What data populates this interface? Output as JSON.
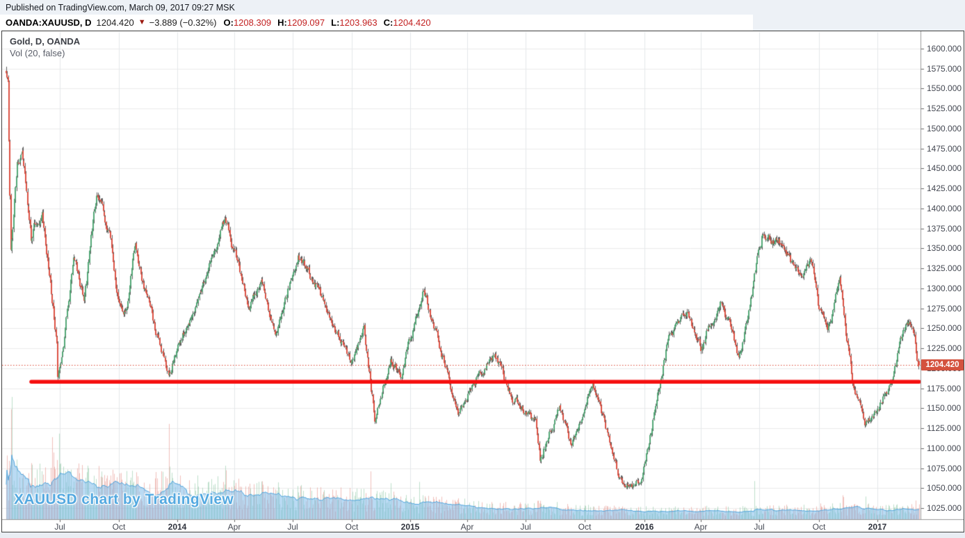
{
  "header": {
    "published_line": "Published on TradingView.com, March 09, 2017 09:27 MSK",
    "symbol_line": {
      "symbol": "OANDA:XAUUSD, D",
      "last": "1204.420",
      "arrow_glyph": "▼",
      "change": "−3.889 (−0.32%)",
      "o_label": "O:",
      "o_value": "1208.309",
      "h_label": "H:",
      "h_value": "1209.097",
      "l_label": "L:",
      "l_value": "1203.963",
      "c_label": "C:",
      "c_value": "1204.420"
    }
  },
  "chart": {
    "legend": {
      "title": "Gold, D, OANDA",
      "indicator": "Vol (20, false)"
    },
    "watermark": "XAUUSD chart by TradingView",
    "price_label": "1204.420",
    "colors": {
      "page_band": "#edf1f6",
      "chart_bg": "#ffffff",
      "frame": "#3e3e3e",
      "axis_line": "#999999",
      "tick_mark": "#666666",
      "grid_h": "#ececec",
      "grid_v": "#e4e7ea",
      "up_body": "#52a876",
      "down_body": "#dc5143",
      "wick": "#5f5f5f",
      "vol_up": "rgba(110,185,140,0.45)",
      "vol_down": "rgba(225,115,105,0.45)",
      "vol_ma_fill": "rgba(130,190,235,0.55)",
      "vol_ma_line": "#4da3dc",
      "support_line": "#f50f0f",
      "last_price_line": "#dc4936",
      "badge_bg": "#d4523e",
      "badge_text": "#ffffff",
      "watermark": "#54a9e0"
    }
  },
  "chart_data": {
    "type": "candlestick+volume",
    "symbol": "XAUUSD",
    "exchange": "OANDA",
    "timeframe": "D",
    "title": "Gold, D, OANDA",
    "volume_indicator": "Vol (20, false)",
    "render_seed": 7,
    "y_axis": {
      "decimals": 3,
      "ticks": [
        1600,
        1575,
        1550,
        1525,
        1500,
        1475,
        1450,
        1425,
        1400,
        1375,
        1350,
        1325,
        1300,
        1275,
        1250,
        1225,
        1200,
        1175,
        1150,
        1125,
        1100,
        1075,
        1050,
        1025
      ]
    },
    "x_axis": {
      "start_date": "2013-04-08",
      "end_date": "2017-03-09",
      "ticks": [
        {
          "label": "Jul",
          "date": "2013-07-01",
          "bold": false
        },
        {
          "label": "Oct",
          "date": "2013-10-01",
          "bold": false
        },
        {
          "label": "2014",
          "date": "2014-01-01",
          "bold": true
        },
        {
          "label": "Apr",
          "date": "2014-04-01",
          "bold": false
        },
        {
          "label": "Jul",
          "date": "2014-07-01",
          "bold": false
        },
        {
          "label": "Oct",
          "date": "2014-10-01",
          "bold": false
        },
        {
          "label": "2015",
          "date": "2015-01-01",
          "bold": true
        },
        {
          "label": "Apr",
          "date": "2015-04-01",
          "bold": false
        },
        {
          "label": "Jul",
          "date": "2015-07-01",
          "bold": false
        },
        {
          "label": "Oct",
          "date": "2015-10-01",
          "bold": false
        },
        {
          "label": "2016",
          "date": "2016-01-04",
          "bold": true
        },
        {
          "label": "Apr",
          "date": "2016-04-01",
          "bold": false
        },
        {
          "label": "Jul",
          "date": "2016-07-01",
          "bold": false
        },
        {
          "label": "Oct",
          "date": "2016-10-03",
          "bold": false
        },
        {
          "label": "2017",
          "date": "2017-01-02",
          "bold": true
        }
      ]
    },
    "last_price": 1204.42,
    "last_ohlc": {
      "open": 1208.309,
      "high": 1209.097,
      "low": 1203.963,
      "close": 1204.42
    },
    "support_line": {
      "price": 1183,
      "start_date": "2013-05-17",
      "ends_at": "plot-right-edge"
    },
    "anchors": [
      [
        "2013-04-08",
        1575
      ],
      [
        "2013-04-11",
        1561
      ],
      [
        "2013-04-12",
        1483
      ],
      [
        "2013-04-15",
        1352
      ],
      [
        "2013-04-16",
        1368
      ],
      [
        "2013-04-25",
        1458
      ],
      [
        "2013-05-03",
        1470
      ],
      [
        "2013-05-17",
        1360
      ],
      [
        "2013-05-22",
        1380
      ],
      [
        "2013-06-04",
        1399
      ],
      [
        "2013-06-20",
        1286
      ],
      [
        "2013-06-26",
        1228
      ],
      [
        "2013-06-28",
        1187
      ],
      [
        "2013-07-05",
        1212
      ],
      [
        "2013-07-23",
        1335
      ],
      [
        "2013-08-07",
        1285
      ],
      [
        "2013-08-28",
        1418
      ],
      [
        "2013-09-18",
        1364
      ],
      [
        "2013-10-01",
        1287
      ],
      [
        "2013-10-15",
        1273
      ],
      [
        "2013-10-28",
        1352
      ],
      [
        "2013-11-25",
        1250
      ],
      [
        "2013-12-19",
        1188
      ],
      [
        "2014-01-02",
        1225
      ],
      [
        "2014-03-17",
        1385
      ],
      [
        "2014-04-24",
        1284
      ],
      [
        "2014-05-14",
        1306
      ],
      [
        "2014-06-03",
        1244
      ],
      [
        "2014-07-10",
        1339
      ],
      [
        "2014-08-06",
        1308
      ],
      [
        "2014-09-30",
        1208
      ],
      [
        "2014-10-21",
        1248
      ],
      [
        "2014-11-07",
        1142
      ],
      [
        "2014-12-01",
        1212
      ],
      [
        "2014-12-17",
        1188
      ],
      [
        "2015-01-22",
        1301
      ],
      [
        "2015-03-17",
        1148
      ],
      [
        "2015-05-14",
        1221
      ],
      [
        "2015-06-05",
        1172
      ],
      [
        "2015-07-17",
        1132
      ],
      [
        "2015-07-24",
        1086
      ],
      [
        "2015-08-24",
        1154
      ],
      [
        "2015-09-11",
        1103
      ],
      [
        "2015-10-15",
        1184
      ],
      [
        "2015-11-27",
        1057
      ],
      [
        "2015-12-03",
        1049
      ],
      [
        "2015-12-17",
        1051
      ],
      [
        "2015-12-31",
        1060
      ],
      [
        "2016-02-11",
        1242
      ],
      [
        "2016-03-11",
        1272
      ],
      [
        "2016-04-01",
        1222
      ],
      [
        "2016-05-02",
        1291
      ],
      [
        "2016-05-31",
        1212
      ],
      [
        "2016-06-24",
        1316
      ],
      [
        "2016-07-06",
        1366
      ],
      [
        "2016-08-02",
        1357
      ],
      [
        "2016-09-01",
        1311
      ],
      [
        "2016-09-22",
        1337
      ],
      [
        "2016-10-04",
        1268
      ],
      [
        "2016-10-17",
        1253
      ],
      [
        "2016-11-04",
        1304
      ],
      [
        "2016-11-09",
        1280
      ],
      [
        "2016-11-25",
        1184
      ],
      [
        "2016-12-15",
        1128
      ],
      [
        "2017-01-27",
        1188
      ],
      [
        "2017-02-08",
        1236
      ],
      [
        "2017-02-27",
        1257
      ],
      [
        "2017-03-01",
        1250
      ],
      [
        "2017-03-08",
        1208
      ],
      [
        "2017-03-09",
        1204.42
      ]
    ],
    "volume": {
      "base_profile": [
        [
          "2013-04-08",
          1.3
        ],
        [
          "2013-09-01",
          1.05
        ],
        [
          "2014-01-01",
          0.9
        ],
        [
          "2014-07-01",
          0.72
        ],
        [
          "2014-12-01",
          0.55
        ],
        [
          "2015-03-15",
          0.42
        ],
        [
          "2015-06-01",
          0.34
        ],
        [
          "2015-08-01",
          0.36
        ],
        [
          "2015-10-01",
          0.28
        ],
        [
          "2016-01-01",
          0.25
        ],
        [
          "2016-07-01",
          0.27
        ],
        [
          "2016-11-01",
          0.32
        ],
        [
          "2017-03-09",
          0.3
        ]
      ],
      "spike_events": [
        [
          "2013-04-15",
          4.6
        ],
        [
          "2013-04-16",
          3.1
        ],
        [
          "2013-06-20",
          2.3
        ],
        [
          "2013-06-28",
          2.0
        ],
        [
          "2013-09-18",
          1.9
        ],
        [
          "2013-10-28",
          1.7
        ],
        [
          "2013-12-19",
          2.2
        ],
        [
          "2014-03-17",
          1.5
        ],
        [
          "2014-10-31",
          1.6
        ],
        [
          "2014-12-01",
          1.8
        ],
        [
          "2015-01-15",
          2.6
        ],
        [
          "2015-07-20",
          2.3
        ],
        [
          "2016-06-24",
          3.3
        ],
        [
          "2016-11-09",
          2.5
        ],
        [
          "2016-12-15",
          1.7
        ],
        [
          "2017-03-02",
          1.5
        ]
      ],
      "ma_period": 20
    }
  }
}
